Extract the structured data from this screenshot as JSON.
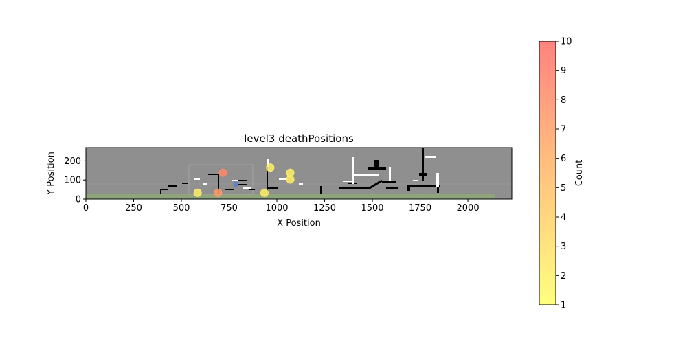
{
  "chart_data": {
    "type": "scatter",
    "title": "level3 deathPositions",
    "xlabel": "X Position",
    "ylabel": "Y Position",
    "xlim": [
      0,
      2230
    ],
    "ylim": [
      0,
      270
    ],
    "x_ticks": [
      0,
      250,
      500,
      750,
      1000,
      1250,
      1500,
      1750,
      2000
    ],
    "y_ticks": [
      0,
      100,
      200
    ],
    "grid": false,
    "background_image": "level-map",
    "points": [
      {
        "x": 718,
        "y": 138,
        "count": 8
      },
      {
        "x": 692,
        "y": 33,
        "count": 7
      },
      {
        "x": 585,
        "y": 33,
        "count": 2
      },
      {
        "x": 935,
        "y": 33,
        "count": 2
      },
      {
        "x": 965,
        "y": 165,
        "count": 2
      },
      {
        "x": 1070,
        "y": 138,
        "count": 2
      },
      {
        "x": 1070,
        "y": 103,
        "count": 2
      },
      {
        "x": 785,
        "y": 78,
        "count": 1
      }
    ],
    "colorbar": {
      "label": "Count",
      "min": 1,
      "max": 10,
      "ticks": [
        1,
        2,
        3,
        4,
        5,
        6,
        7,
        8,
        9,
        10
      ],
      "color_low": "#ffff66",
      "color_high": "#ff6666"
    }
  }
}
